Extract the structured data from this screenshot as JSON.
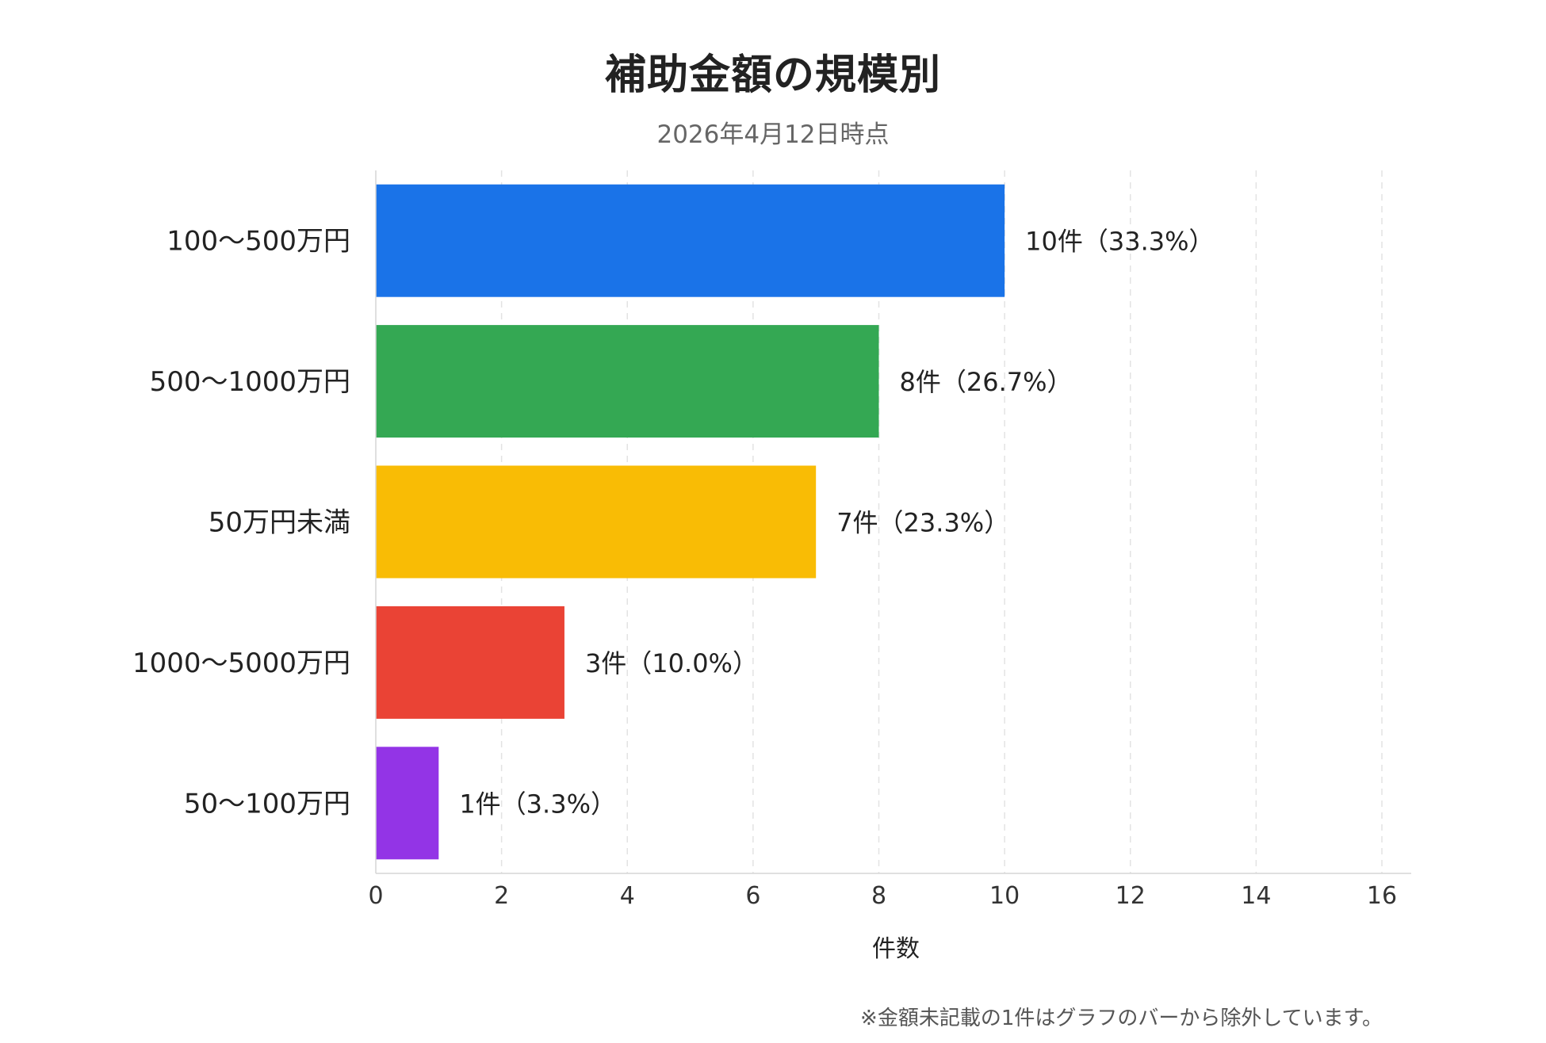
{
  "title": "補助金額の規模別",
  "subtitle": "2026年4月12日時点",
  "footnote": "※金額未記載の1件はグラフのバーから除外しています。",
  "chart_data": {
    "type": "bar",
    "orientation": "horizontal",
    "categories": [
      "100〜500万円",
      "500〜1000万円",
      "50万円未満",
      "1000〜5000万円",
      "50〜100万円"
    ],
    "values": [
      10,
      8,
      7,
      3,
      1
    ],
    "data_labels": [
      "10件（33.3%）",
      "8件（26.7%）",
      "7件（23.3%）",
      "3件（10.0%）",
      "1件（3.3%）"
    ],
    "colors": [
      "#1a73e8",
      "#34a853",
      "#f9bc05",
      "#ea4335",
      "#9334e6"
    ],
    "xlabel": "件数",
    "ylabel": "",
    "xlim": [
      0,
      16
    ],
    "xticks": [
      0,
      2,
      4,
      6,
      8,
      10,
      12,
      14,
      16
    ],
    "grid": "vertical-dashed",
    "legend": "none"
  }
}
